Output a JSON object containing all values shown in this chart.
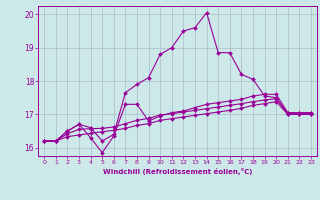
{
  "xlabel": "Windchill (Refroidissement éolien,°C)",
  "background_color": "#cce8e8",
  "grid_color": "#aabbcc",
  "line_color": "#990099",
  "xlim": [
    -0.5,
    23.5
  ],
  "ylim": [
    15.75,
    20.25
  ],
  "yticks": [
    16,
    17,
    18,
    19,
    20
  ],
  "xticks": [
    0,
    1,
    2,
    3,
    4,
    5,
    6,
    7,
    8,
    9,
    10,
    11,
    12,
    13,
    14,
    15,
    16,
    17,
    18,
    19,
    20,
    21,
    22,
    23
  ],
  "series": [
    [
      16.2,
      16.2,
      16.5,
      16.7,
      16.6,
      16.2,
      16.4,
      17.65,
      17.9,
      18.1,
      18.8,
      19.0,
      19.5,
      19.6,
      20.05,
      18.85,
      18.85,
      18.2,
      18.05,
      17.55,
      17.5,
      17.0,
      17.0,
      17.0
    ],
    [
      16.2,
      16.2,
      16.5,
      16.7,
      16.3,
      15.85,
      16.35,
      17.3,
      17.3,
      16.8,
      16.95,
      17.05,
      17.1,
      17.2,
      17.3,
      17.35,
      17.4,
      17.45,
      17.55,
      17.6,
      17.6,
      17.05,
      17.05,
      17.05
    ],
    [
      16.2,
      16.2,
      16.42,
      16.55,
      16.57,
      16.58,
      16.62,
      16.72,
      16.82,
      16.88,
      16.98,
      17.02,
      17.07,
      17.12,
      17.17,
      17.22,
      17.27,
      17.32,
      17.38,
      17.43,
      17.47,
      17.03,
      17.03,
      17.03
    ],
    [
      16.2,
      16.2,
      16.33,
      16.38,
      16.43,
      16.48,
      16.52,
      16.58,
      16.67,
      16.72,
      16.82,
      16.87,
      16.92,
      16.97,
      17.02,
      17.07,
      17.12,
      17.18,
      17.27,
      17.32,
      17.38,
      17.0,
      17.0,
      17.0
    ]
  ]
}
